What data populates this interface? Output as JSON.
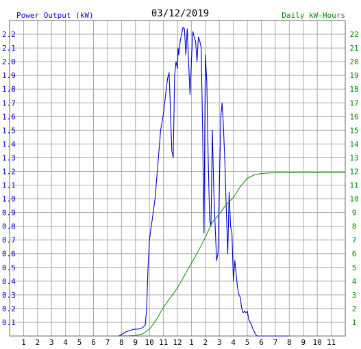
{
  "chart_data": {
    "type": "line",
    "title": "03/12/2019",
    "ylabel_left": "Power Output (kW)",
    "ylabel_right": "Daily kW-Hours",
    "ylim_left": [
      0,
      2.3
    ],
    "ylim_right": [
      0,
      23
    ],
    "grid": true,
    "colors": {
      "power": "#0000cc",
      "energy": "#008800",
      "left_axis_text": "#0000cc",
      "right_axis_text": "#008800",
      "grid": "#aaaaaa",
      "frame": "#666666"
    },
    "x_tick_labels": [
      "1",
      "2",
      "3",
      "4",
      "5",
      "6",
      "7",
      "8",
      "9",
      "10",
      "11",
      "12",
      "1",
      "2",
      "3",
      "4",
      "5",
      "6",
      "7",
      "8",
      "9",
      "10",
      "11"
    ],
    "y_left_ticks": [
      "0.1",
      "0.2",
      "0.3",
      "0.4",
      "0.5",
      "0.6",
      "0.7",
      "0.8",
      "0.9",
      "1.0",
      "1.1",
      "1.2",
      "1.3",
      "1.4",
      "1.5",
      "1.6",
      "1.7",
      "1.8",
      "1.9",
      "2.0",
      "2.1",
      "2.2"
    ],
    "y_right_ticks": [
      "1",
      "2",
      "3",
      "4",
      "5",
      "6",
      "7",
      "8",
      "9",
      "10",
      "11",
      "12",
      "13",
      "14",
      "15",
      "16",
      "17",
      "18",
      "19",
      "20",
      "21",
      "22"
    ],
    "series": [
      {
        "x": [
          7.8,
          8.0,
          8.3,
          8.6,
          8.9,
          9.2,
          9.5,
          9.7,
          9.8,
          9.9,
          10.0,
          10.1,
          10.2,
          10.4,
          10.6,
          10.8,
          11.0,
          11.2,
          11.3,
          11.4,
          11.5,
          11.6,
          11.7,
          11.8,
          11.9,
          12.0,
          12.05,
          12.1,
          12.2,
          12.3,
          12.4,
          12.5,
          12.6,
          12.7,
          12.8,
          12.9,
          13.0,
          13.1,
          13.2,
          13.3,
          13.4,
          13.5,
          13.6,
          13.7,
          13.8,
          13.9,
          14.0,
          14.1,
          14.2,
          14.3,
          14.4,
          14.5,
          14.6,
          14.7,
          14.8,
          14.9,
          15.0,
          15.1,
          15.2,
          15.3,
          15.4,
          15.5,
          15.6,
          15.7,
          15.8,
          15.9,
          16.0,
          16.1,
          16.2,
          16.3,
          16.4,
          16.5,
          16.6,
          16.7,
          16.8,
          16.9,
          17.0,
          17.1,
          17.2,
          17.3,
          17.4,
          17.5,
          17.6,
          17.7,
          17.8,
          17.9,
          18.0,
          18.2,
          18.4,
          18.6,
          18.8,
          19.0,
          19.2,
          19.4,
          19.6,
          19.8,
          20.0
        ],
        "values": [
          0.0,
          0.01,
          0.03,
          0.04,
          0.05,
          0.05,
          0.06,
          0.08,
          0.2,
          0.5,
          0.7,
          0.78,
          0.85,
          1.0,
          1.25,
          1.5,
          1.62,
          1.8,
          1.88,
          1.92,
          1.65,
          1.35,
          1.3,
          1.9,
          2.0,
          1.95,
          2.1,
          2.05,
          2.15,
          2.2,
          2.25,
          2.24,
          2.05,
          2.24,
          2.0,
          1.76,
          2.0,
          2.22,
          2.18,
          2.15,
          2.0,
          2.18,
          2.15,
          2.1,
          1.5,
          0.75,
          2.05,
          1.85,
          1.3,
          0.85,
          0.8,
          1.5,
          1.05,
          0.8,
          0.55,
          0.6,
          1.1,
          1.6,
          1.7,
          1.5,
          1.25,
          0.9,
          0.6,
          1.05,
          0.8,
          0.75,
          0.4,
          0.55,
          0.45,
          0.35,
          0.3,
          0.28,
          0.2,
          0.17,
          0.18,
          0.17,
          0.18,
          0.12,
          0.1,
          0.08,
          0.05,
          0.03,
          0.01,
          0.0,
          0.0,
          0.0,
          0.0,
          0.0,
          0.0,
          0.0,
          0.0,
          0.0,
          0.0,
          0.0,
          0.0,
          0.0,
          0.0
        ]
      },
      {
        "x": [
          7.8,
          8.5,
          9.0,
          9.5,
          10.0,
          10.5,
          11.0,
          11.5,
          12.0,
          12.5,
          13.0,
          13.5,
          14.0,
          14.5,
          15.0,
          15.5,
          16.0,
          16.5,
          17.0,
          17.5,
          18.0,
          18.5,
          19.0,
          20.0,
          21.0,
          22.0,
          23.0,
          24.0
        ],
        "values": [
          0.0,
          0.01,
          0.03,
          0.15,
          0.5,
          1.2,
          2.1,
          2.8,
          3.5,
          4.4,
          5.3,
          6.2,
          7.2,
          8.3,
          8.9,
          9.6,
          10.1,
          10.9,
          11.5,
          11.75,
          11.85,
          11.88,
          11.9,
          11.9,
          11.9,
          11.9,
          11.9,
          11.9
        ]
      }
    ]
  }
}
